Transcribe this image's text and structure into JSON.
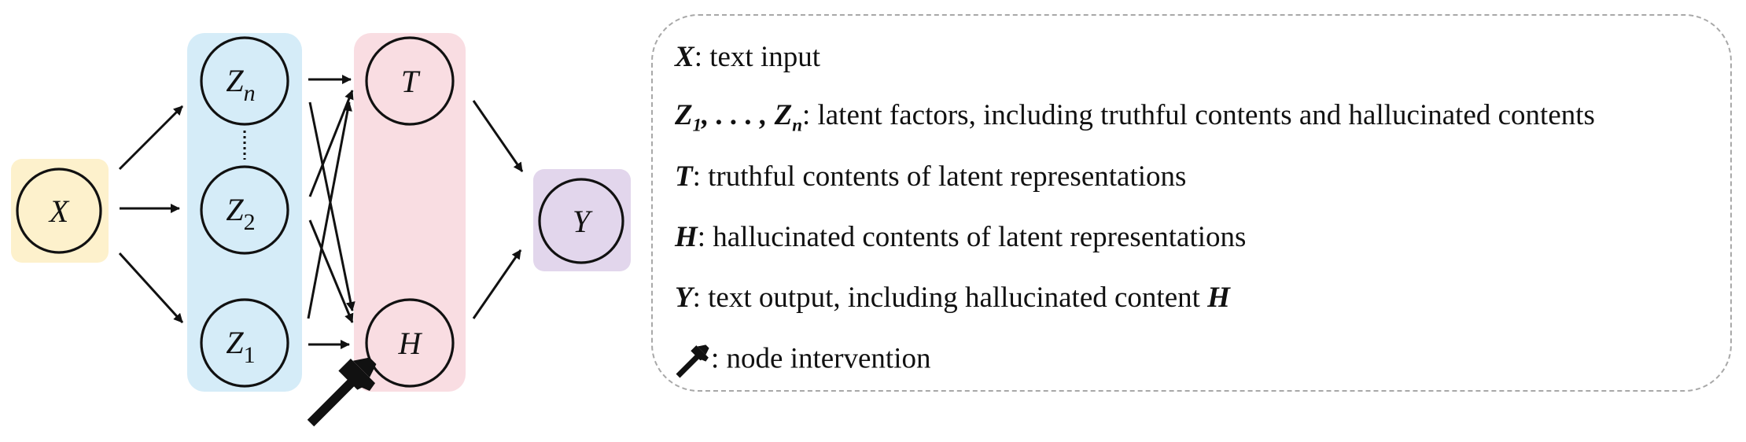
{
  "nodes": {
    "x": "X",
    "zn": {
      "main": "Z",
      "sub": "n"
    },
    "z2": {
      "main": "Z",
      "sub": "2"
    },
    "z1": {
      "main": "Z",
      "sub": "1"
    },
    "t": "T",
    "h": "H",
    "y": "Y"
  },
  "colors": {
    "x_group": "#fdf1cc",
    "z_group": "#d5ecf8",
    "th_group": "#f9dde2",
    "y_group": "#e2d6ec",
    "stroke": "#111111",
    "legend_border": "#a8a8a8"
  },
  "icons": {
    "intervention": "hammer-icon"
  },
  "legend": {
    "x": {
      "symbol": "X",
      "text": ": text input"
    },
    "z": {
      "symbol_main": "Z",
      "sub_first": "1",
      "separator": ", . . . , ",
      "sub_last": "n",
      "text": ": latent factors, including truthful contents and hallucinated contents"
    },
    "t": {
      "symbol": "T",
      "text": ": truthful contents of latent representations"
    },
    "h": {
      "symbol": "H",
      "text": ": hallucinated contents of latent representations"
    },
    "y": {
      "symbol": "Y",
      "text": ": text output, including hallucinated content ",
      "tail_symbol": "H"
    },
    "hammer": {
      "text": ": node intervention"
    }
  }
}
